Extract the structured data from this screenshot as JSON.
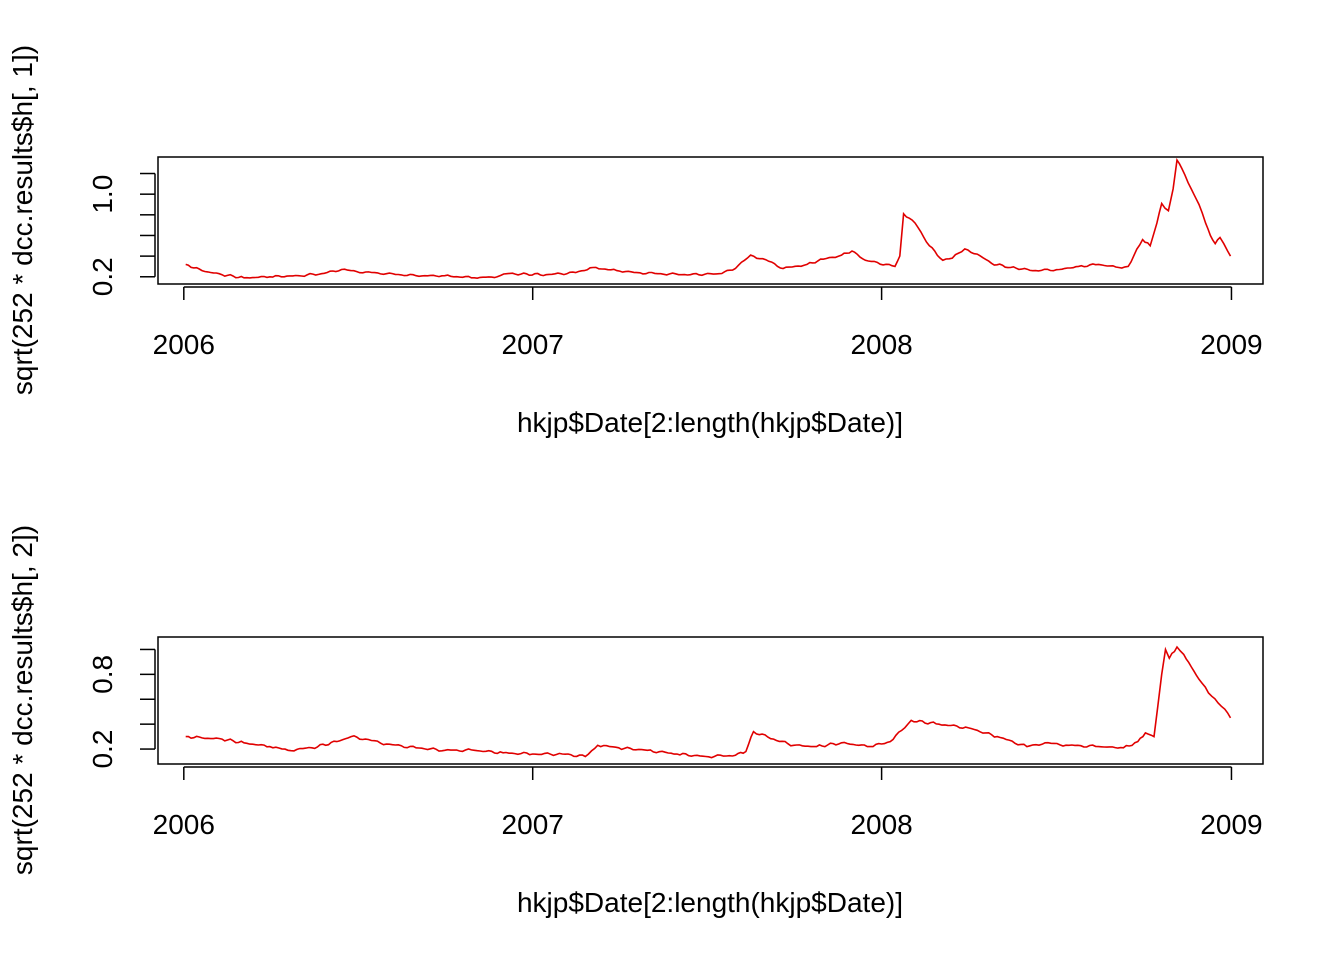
{
  "colors": {
    "series": "#e00000",
    "axes": "#000000",
    "background": "#ffffff"
  },
  "chart_data": [
    {
      "type": "line",
      "xlabel": "hkjp$Date[2:length(hkjp$Date)]",
      "ylabel": "sqrt(252 * dcc.results$h[, 1])",
      "x_axis": {
        "type": "date",
        "ticks": [
          "2006-01-01",
          "2007-01-01",
          "2008-01-01",
          "2009-01-01"
        ],
        "tick_labels": [
          "2006",
          "2007",
          "2008",
          "2009"
        ]
      },
      "y_axis": {
        "ticks": [
          0.2,
          0.4,
          0.6,
          0.8,
          1.0,
          1.2
        ],
        "tick_labels": [
          "0.2",
          "",
          "",
          "",
          "1.0",
          ""
        ]
      },
      "xlim": [
        "2005-12-05",
        "2009-02-03"
      ],
      "ylim": [
        0.13,
        1.36
      ],
      "grid": false,
      "series": [
        {
          "color": "#e00000",
          "points": [
            [
              "2006-01-03",
              0.32
            ],
            [
              "2006-01-20",
              0.26
            ],
            [
              "2006-02-10",
              0.22
            ],
            [
              "2006-03-05",
              0.19
            ],
            [
              "2006-04-01",
              0.2
            ],
            [
              "2006-05-01",
              0.21
            ],
            [
              "2006-05-25",
              0.23
            ],
            [
              "2006-06-15",
              0.27
            ],
            [
              "2006-07-01",
              0.25
            ],
            [
              "2006-08-01",
              0.23
            ],
            [
              "2006-09-01",
              0.21
            ],
            [
              "2006-10-01",
              0.21
            ],
            [
              "2006-11-01",
              0.19
            ],
            [
              "2006-11-25",
              0.2
            ],
            [
              "2006-12-05",
              0.23
            ],
            [
              "2007-01-15",
              0.22
            ],
            [
              "2007-02-15",
              0.24
            ],
            [
              "2007-03-05",
              0.29
            ],
            [
              "2007-03-30",
              0.26
            ],
            [
              "2007-04-20",
              0.24
            ],
            [
              "2007-05-15",
              0.23
            ],
            [
              "2007-06-15",
              0.22
            ],
            [
              "2007-07-15",
              0.23
            ],
            [
              "2007-08-01",
              0.28
            ],
            [
              "2007-08-17",
              0.41
            ],
            [
              "2007-09-05",
              0.35
            ],
            [
              "2007-09-20",
              0.28
            ],
            [
              "2007-10-15",
              0.32
            ],
            [
              "2007-11-01",
              0.37
            ],
            [
              "2007-11-20",
              0.41
            ],
            [
              "2007-12-01",
              0.45
            ],
            [
              "2007-12-15",
              0.36
            ],
            [
              "2008-01-15",
              0.3
            ],
            [
              "2008-01-20",
              0.4
            ],
            [
              "2008-01-24",
              0.81
            ],
            [
              "2008-02-05",
              0.72
            ],
            [
              "2008-02-20",
              0.5
            ],
            [
              "2008-03-05",
              0.36
            ],
            [
              "2008-03-15",
              0.38
            ],
            [
              "2008-03-28",
              0.47
            ],
            [
              "2008-04-10",
              0.42
            ],
            [
              "2008-04-25",
              0.33
            ],
            [
              "2008-05-15",
              0.29
            ],
            [
              "2008-06-10",
              0.26
            ],
            [
              "2008-07-05",
              0.27
            ],
            [
              "2008-07-25",
              0.3
            ],
            [
              "2008-08-15",
              0.32
            ],
            [
              "2008-09-05",
              0.29
            ],
            [
              "2008-09-15",
              0.3
            ],
            [
              "2008-09-30",
              0.56
            ],
            [
              "2008-10-08",
              0.5
            ],
            [
              "2008-10-15",
              0.72
            ],
            [
              "2008-10-20",
              0.91
            ],
            [
              "2008-10-27",
              0.84
            ],
            [
              "2008-11-01",
              1.05
            ],
            [
              "2008-11-05",
              1.33
            ],
            [
              "2008-11-10",
              1.25
            ],
            [
              "2008-11-20",
              1.05
            ],
            [
              "2008-11-28",
              0.9
            ],
            [
              "2008-12-05",
              0.72
            ],
            [
              "2008-12-10",
              0.6
            ],
            [
              "2008-12-15",
              0.52
            ],
            [
              "2008-12-20",
              0.58
            ],
            [
              "2008-12-24",
              0.52
            ],
            [
              "2008-12-28",
              0.45
            ],
            [
              "2008-12-31",
              0.4
            ]
          ]
        }
      ]
    },
    {
      "type": "line",
      "xlabel": "hkjp$Date[2:length(hkjp$Date)]",
      "ylabel": "sqrt(252 * dcc.results$h[, 2])",
      "x_axis": {
        "type": "date",
        "ticks": [
          "2006-01-01",
          "2007-01-01",
          "2008-01-01",
          "2009-01-01"
        ],
        "tick_labels": [
          "2006",
          "2007",
          "2008",
          "2009"
        ]
      },
      "y_axis": {
        "ticks": [
          0.2,
          0.4,
          0.6,
          0.8,
          1.0
        ],
        "tick_labels": [
          "0.2",
          "",
          "",
          "0.8",
          ""
        ]
      },
      "xlim": [
        "2005-12-05",
        "2009-02-03"
      ],
      "ylim": [
        0.08,
        1.1
      ],
      "grid": false,
      "series": [
        {
          "color": "#e00000",
          "points": [
            [
              "2006-01-03",
              0.3
            ],
            [
              "2006-01-20",
              0.29
            ],
            [
              "2006-02-10",
              0.28
            ],
            [
              "2006-03-05",
              0.25
            ],
            [
              "2006-04-01",
              0.22
            ],
            [
              "2006-04-20",
              0.19
            ],
            [
              "2006-05-15",
              0.21
            ],
            [
              "2006-06-10",
              0.26
            ],
            [
              "2006-06-25",
              0.3
            ],
            [
              "2006-07-10",
              0.28
            ],
            [
              "2006-08-01",
              0.24
            ],
            [
              "2006-09-01",
              0.21
            ],
            [
              "2006-10-01",
              0.19
            ],
            [
              "2006-11-01",
              0.19
            ],
            [
              "2006-12-01",
              0.17
            ],
            [
              "2007-01-01",
              0.16
            ],
            [
              "2007-02-01",
              0.16
            ],
            [
              "2007-02-25",
              0.14
            ],
            [
              "2007-03-10",
              0.23
            ],
            [
              "2007-04-01",
              0.21
            ],
            [
              "2007-05-01",
              0.19
            ],
            [
              "2007-06-01",
              0.16
            ],
            [
              "2007-07-01",
              0.14
            ],
            [
              "2007-08-01",
              0.15
            ],
            [
              "2007-08-12",
              0.18
            ],
            [
              "2007-08-20",
              0.34
            ],
            [
              "2007-09-10",
              0.28
            ],
            [
              "2007-10-01",
              0.23
            ],
            [
              "2007-10-25",
              0.22
            ],
            [
              "2007-11-20",
              0.25
            ],
            [
              "2007-12-20",
              0.22
            ],
            [
              "2008-01-10",
              0.26
            ],
            [
              "2008-01-22",
              0.35
            ],
            [
              "2008-02-01",
              0.43
            ],
            [
              "2008-03-01",
              0.4
            ],
            [
              "2008-04-01",
              0.37
            ],
            [
              "2008-05-01",
              0.3
            ],
            [
              "2008-06-01",
              0.22
            ],
            [
              "2008-06-20",
              0.25
            ],
            [
              "2008-07-15",
              0.23
            ],
            [
              "2008-08-15",
              0.22
            ],
            [
              "2008-09-10",
              0.21
            ],
            [
              "2008-09-25",
              0.26
            ],
            [
              "2008-10-03",
              0.33
            ],
            [
              "2008-10-12",
              0.3
            ],
            [
              "2008-10-16",
              0.55
            ],
            [
              "2008-10-20",
              0.8
            ],
            [
              "2008-10-24",
              1.0
            ],
            [
              "2008-10-28",
              0.93
            ],
            [
              "2008-11-05",
              1.02
            ],
            [
              "2008-11-12",
              0.96
            ],
            [
              "2008-11-20",
              0.86
            ],
            [
              "2008-11-28",
              0.76
            ],
            [
              "2008-12-08",
              0.65
            ],
            [
              "2008-12-18",
              0.57
            ],
            [
              "2008-12-25",
              0.52
            ],
            [
              "2008-12-31",
              0.45
            ]
          ]
        }
      ]
    }
  ]
}
